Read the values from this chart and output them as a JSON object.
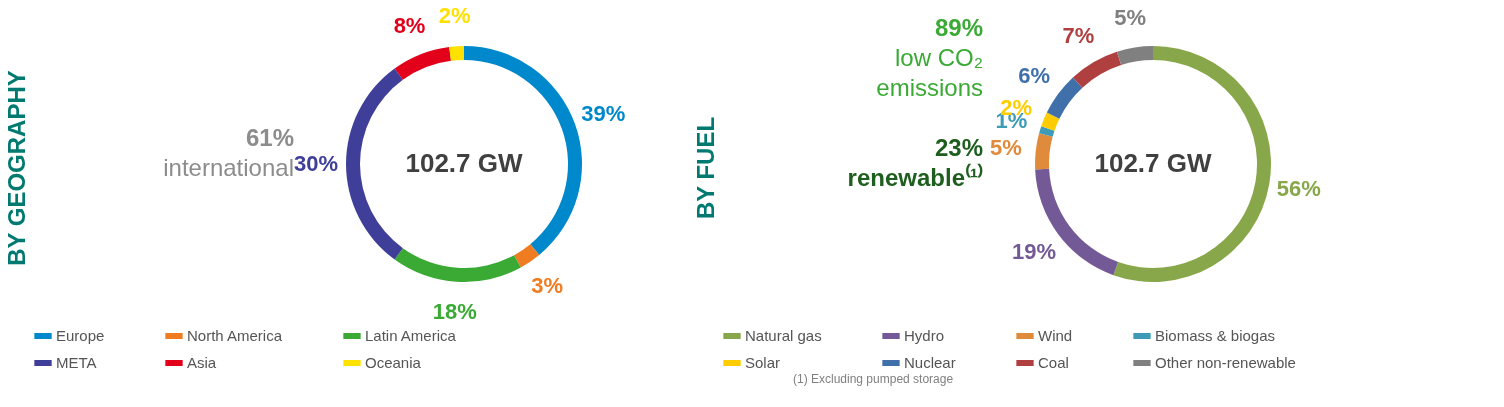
{
  "chart_data": [
    {
      "type": "donut",
      "title": "BY GEOGRAPHY",
      "categories": [
        "Europe",
        "North America",
        "Latin America",
        "META",
        "Asia",
        "Oceania"
      ],
      "values": [
        39,
        3,
        18,
        30,
        8,
        2
      ],
      "colors": [
        "#0088cc",
        "#f07c22",
        "#3aaa35",
        "#3f3f99",
        "#e2001a",
        "#ffe100"
      ],
      "value_labels": [
        "39%",
        "3%",
        "18%",
        "30%",
        "8%",
        "2%"
      ],
      "legend": "bottom",
      "annotations": [
        "102.7 GW",
        "61%\ninternational"
      ]
    },
    {
      "type": "donut",
      "title": "BY FUEL",
      "categories": [
        "Natural gas",
        "Hydro",
        "Wind",
        "Biomass & biogas",
        "Solar",
        "Nuclear",
        "Coal",
        "Other non-renewable"
      ],
      "values": [
        56,
        19,
        5,
        1,
        2,
        6,
        7,
        5
      ],
      "colors": [
        "#88a74a",
        "#735a96",
        "#e08a3c",
        "#3e9bb5",
        "#ffcc00",
        "#3f70aa",
        "#b04040",
        "#808080"
      ],
      "value_labels": [
        "56%",
        "19%",
        "5%",
        "1%",
        "2%",
        "6%",
        "7%",
        "5%"
      ],
      "legend": "bottom",
      "annotations": [
        "102.7 GW",
        "89%\nlow CO₂\nemissions",
        "23%\nrenewable⁽¹⁾",
        "(1) Excluding pumped storage"
      ]
    }
  ]
}
